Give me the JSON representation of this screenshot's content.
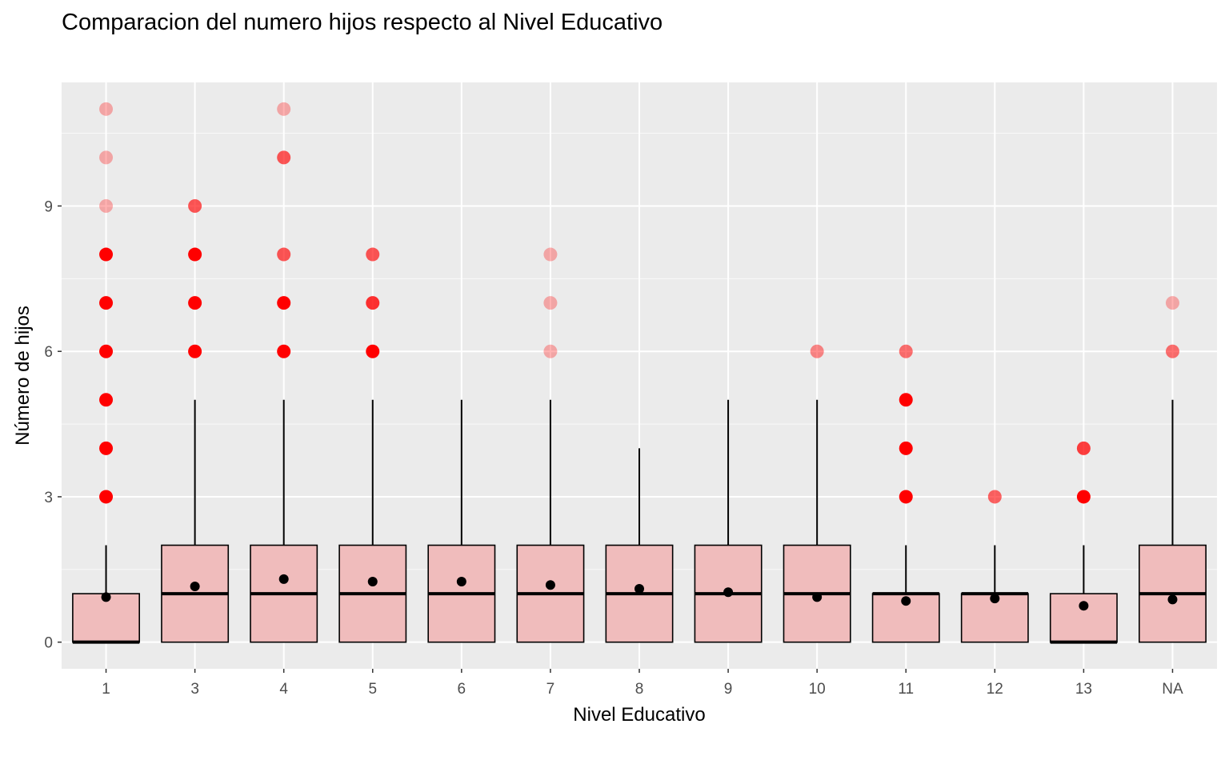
{
  "chart_data": {
    "type": "box",
    "title": "Comparacion del numero hijos respecto al Nivel Educativo",
    "xlabel": "Nivel Educativo",
    "ylabel": "Número de hijos",
    "ylim": [
      -0.55,
      11.55
    ],
    "yticks": [
      0,
      3,
      6,
      9
    ],
    "grid": true,
    "legend": "none",
    "colors": {
      "panel_bg": "#ebebeb",
      "grid": "#ffffff",
      "box_fill": "#f0bcbc",
      "box_stroke": "#000000",
      "outlier": "#ff0000",
      "mean_point": "#000000",
      "tick_text": "#4d4d4d",
      "tick_mark": "#333333"
    },
    "categories": [
      "1",
      "3",
      "4",
      "5",
      "6",
      "7",
      "8",
      "9",
      "10",
      "11",
      "12",
      "13",
      "NA"
    ],
    "boxes": [
      {
        "q1": 0,
        "median": 0,
        "q3": 1,
        "whisker_low": 0,
        "whisker_high": 2,
        "mean": 0.93,
        "outliers": [
          {
            "y": 3,
            "o": 1
          },
          {
            "y": 4,
            "o": 1
          },
          {
            "y": 5,
            "o": 1
          },
          {
            "y": 6,
            "o": 1
          },
          {
            "y": 7,
            "o": 1
          },
          {
            "y": 8,
            "o": 1
          },
          {
            "y": 9,
            "o": 0.3
          },
          {
            "y": 10,
            "o": 0.3
          },
          {
            "y": 11,
            "o": 0.3
          }
        ]
      },
      {
        "q1": 0,
        "median": 1,
        "q3": 2,
        "whisker_low": 0,
        "whisker_high": 5,
        "mean": 1.15,
        "outliers": [
          {
            "y": 6,
            "o": 1
          },
          {
            "y": 7,
            "o": 1
          },
          {
            "y": 8,
            "o": 1
          },
          {
            "y": 9,
            "o": 0.65
          }
        ]
      },
      {
        "q1": 0,
        "median": 1,
        "q3": 2,
        "whisker_low": 0,
        "whisker_high": 5,
        "mean": 1.3,
        "outliers": [
          {
            "y": 6,
            "o": 1
          },
          {
            "y": 7,
            "o": 1
          },
          {
            "y": 8,
            "o": 0.65
          },
          {
            "y": 10,
            "o": 0.65
          },
          {
            "y": 11,
            "o": 0.3
          }
        ]
      },
      {
        "q1": 0,
        "median": 1,
        "q3": 2,
        "whisker_low": 0,
        "whisker_high": 5,
        "mean": 1.25,
        "outliers": [
          {
            "y": 6,
            "o": 1
          },
          {
            "y": 7,
            "o": 0.8
          },
          {
            "y": 8,
            "o": 0.65
          }
        ]
      },
      {
        "q1": 0,
        "median": 1,
        "q3": 2,
        "whisker_low": 0,
        "whisker_high": 5,
        "mean": 1.25,
        "outliers": []
      },
      {
        "q1": 0,
        "median": 1,
        "q3": 2,
        "whisker_low": 0,
        "whisker_high": 5,
        "mean": 1.18,
        "outliers": [
          {
            "y": 6,
            "o": 0.3
          },
          {
            "y": 7,
            "o": 0.3
          },
          {
            "y": 8,
            "o": 0.3
          }
        ]
      },
      {
        "q1": 0,
        "median": 1,
        "q3": 2,
        "whisker_low": 0,
        "whisker_high": 4,
        "mean": 1.1,
        "outliers": []
      },
      {
        "q1": 0,
        "median": 1,
        "q3": 2,
        "whisker_low": 0,
        "whisker_high": 5,
        "mean": 1.03,
        "outliers": []
      },
      {
        "q1": 0,
        "median": 1,
        "q3": 2,
        "whisker_low": 0,
        "whisker_high": 5,
        "mean": 0.93,
        "outliers": [
          {
            "y": 6,
            "o": 0.45
          }
        ]
      },
      {
        "q1": 0,
        "median": 1,
        "q3": 1,
        "whisker_low": 0,
        "whisker_high": 2,
        "mean": 0.85,
        "outliers": [
          {
            "y": 3,
            "o": 1
          },
          {
            "y": 4,
            "o": 1
          },
          {
            "y": 5,
            "o": 1
          },
          {
            "y": 6,
            "o": 0.55
          }
        ]
      },
      {
        "q1": 0,
        "median": 1,
        "q3": 1,
        "whisker_low": 0,
        "whisker_high": 2,
        "mean": 0.9,
        "outliers": [
          {
            "y": 3,
            "o": 0.6
          }
        ]
      },
      {
        "q1": 0,
        "median": 0,
        "q3": 1,
        "whisker_low": 0,
        "whisker_high": 2,
        "mean": 0.75,
        "outliers": [
          {
            "y": 3,
            "o": 1
          },
          {
            "y": 4,
            "o": 0.75
          }
        ]
      },
      {
        "q1": 0,
        "median": 1,
        "q3": 2,
        "whisker_low": 0,
        "whisker_high": 5,
        "mean": 0.88,
        "outliers": [
          {
            "y": 6,
            "o": 0.55
          },
          {
            "y": 7,
            "o": 0.3
          }
        ]
      }
    ]
  }
}
